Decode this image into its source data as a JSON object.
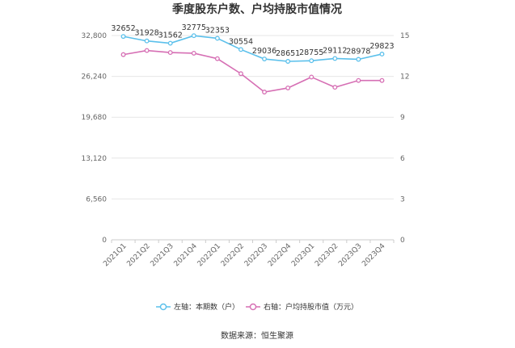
{
  "chart_data": {
    "type": "line",
    "title": "季度股东户数、户均持股市值情况",
    "categories": [
      "2021Q1",
      "2021Q2",
      "2021Q3",
      "2021Q4",
      "2022Q1",
      "2022Q2",
      "2022Q3",
      "2022Q4",
      "2023Q1",
      "2023Q2",
      "2023Q3",
      "2023Q4"
    ],
    "left_axis": {
      "ylim": [
        0,
        32800
      ],
      "ticks": [
        "0",
        "6,560",
        "13,120",
        "19,680",
        "26,240",
        "32,800"
      ],
      "tick_values": [
        0,
        6560,
        13120,
        19680,
        26240,
        32800
      ]
    },
    "right_axis": {
      "ylim": [
        0,
        15
      ],
      "ticks": [
        "0",
        "3",
        "6",
        "9",
        "12",
        "15"
      ],
      "tick_values": [
        0,
        3,
        6,
        9,
        12,
        15
      ]
    },
    "series": [
      {
        "name": "左轴：本期数（户）",
        "axis": "left",
        "color": "#5bc0eb",
        "values": [
          32652,
          31928,
          31562,
          32775,
          32353,
          30554,
          29036,
          28651,
          28755,
          29112,
          28978,
          29823
        ],
        "labels": [
          "32652",
          "31928",
          "31562",
          "32775",
          "32353",
          "30554",
          "29036",
          "28651",
          "28755",
          "29112",
          "28978",
          "29823"
        ]
      },
      {
        "name": "右轴：户均持股市值（万元）",
        "axis": "right",
        "color": "#d66fb4",
        "values": [
          13.6,
          13.9,
          13.75,
          13.7,
          13.3,
          12.2,
          10.85,
          11.15,
          11.95,
          11.2,
          11.7,
          11.7
        ]
      }
    ],
    "grid": true,
    "legend_position": "bottom"
  },
  "footer": {
    "source": "数据来源：恒生聚源"
  }
}
